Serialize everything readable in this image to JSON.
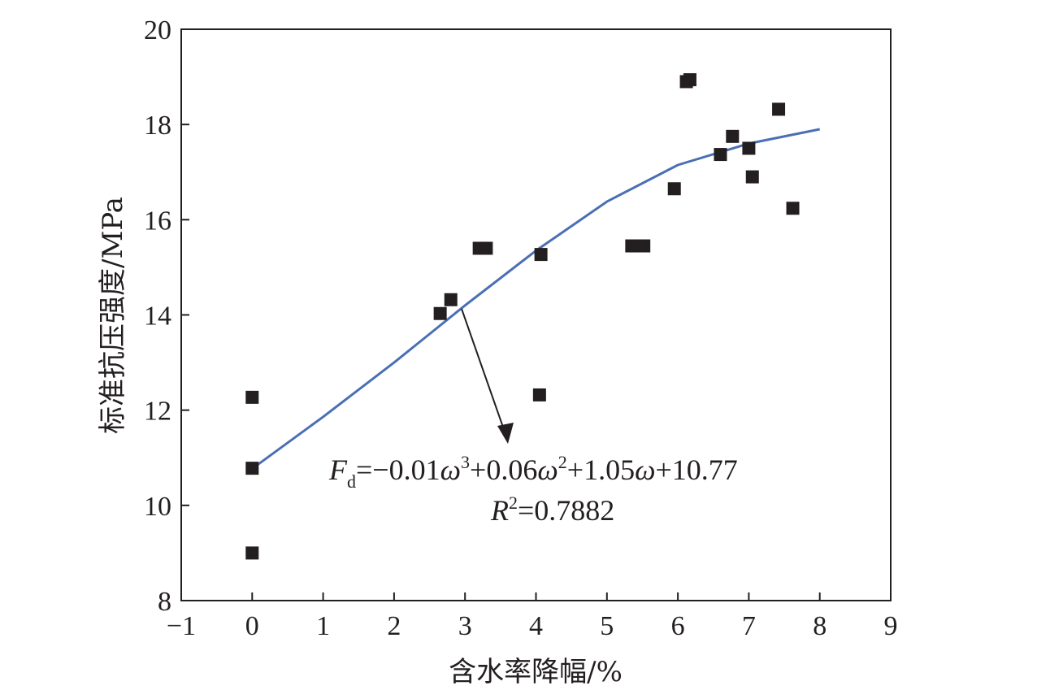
{
  "chart_data": {
    "type": "scatter",
    "xlabel": "含水率降幅/%",
    "ylabel": "标准抗压强度/MPa",
    "xlim": [
      -1,
      9
    ],
    "ylim": [
      8,
      20
    ],
    "xticks": [
      -1,
      0,
      1,
      2,
      3,
      4,
      5,
      6,
      7,
      8,
      9
    ],
    "yticks": [
      8,
      10,
      12,
      14,
      16,
      18,
      20
    ],
    "xtick_labels": [
      "−1",
      "0",
      "1",
      "2",
      "3",
      "4",
      "5",
      "6",
      "7",
      "8",
      "9"
    ],
    "ytick_labels": [
      "8",
      "10",
      "12",
      "14",
      "16",
      "18",
      "20"
    ],
    "grid": false,
    "points": [
      {
        "x": 0,
        "y": 12.27
      },
      {
        "x": 0,
        "y": 10.78
      },
      {
        "x": 0,
        "y": 9.0
      },
      {
        "x": 2.65,
        "y": 14.03
      },
      {
        "x": 2.8,
        "y": 14.32
      },
      {
        "x": 3.2,
        "y": 15.4
      },
      {
        "x": 3.3,
        "y": 15.4
      },
      {
        "x": 4.07,
        "y": 15.27
      },
      {
        "x": 4.05,
        "y": 12.32
      },
      {
        "x": 5.35,
        "y": 15.45
      },
      {
        "x": 5.52,
        "y": 15.45
      },
      {
        "x": 5.95,
        "y": 16.65
      },
      {
        "x": 6.12,
        "y": 18.9
      },
      {
        "x": 6.17,
        "y": 18.94
      },
      {
        "x": 6.6,
        "y": 17.37
      },
      {
        "x": 6.77,
        "y": 17.75
      },
      {
        "x": 7.0,
        "y": 17.5
      },
      {
        "x": 7.05,
        "y": 16.9
      },
      {
        "x": 7.42,
        "y": 18.32
      },
      {
        "x": 7.62,
        "y": 16.24
      }
    ],
    "fit_line": {
      "x": [
        0,
        1,
        2,
        3,
        4,
        5,
        6,
        7,
        8
      ],
      "y": [
        10.77,
        11.86,
        13.0,
        14.2,
        15.35,
        16.38,
        17.15,
        17.6,
        17.9
      ],
      "color": "#4a6fb5"
    },
    "annotation": {
      "eq_F": "F",
      "eq_sub": "d",
      "eq_part1": "=−0.01",
      "eq_w": "ω",
      "eq_sup3": "3",
      "eq_part2": "+0.06",
      "eq_sup2": "2",
      "eq_part3": "+1.05",
      "eq_part4": "+10.77",
      "r2_R": "R",
      "r2_sup": "2",
      "r2_value": "=0.7882"
    },
    "marker_color": "#231f20"
  }
}
